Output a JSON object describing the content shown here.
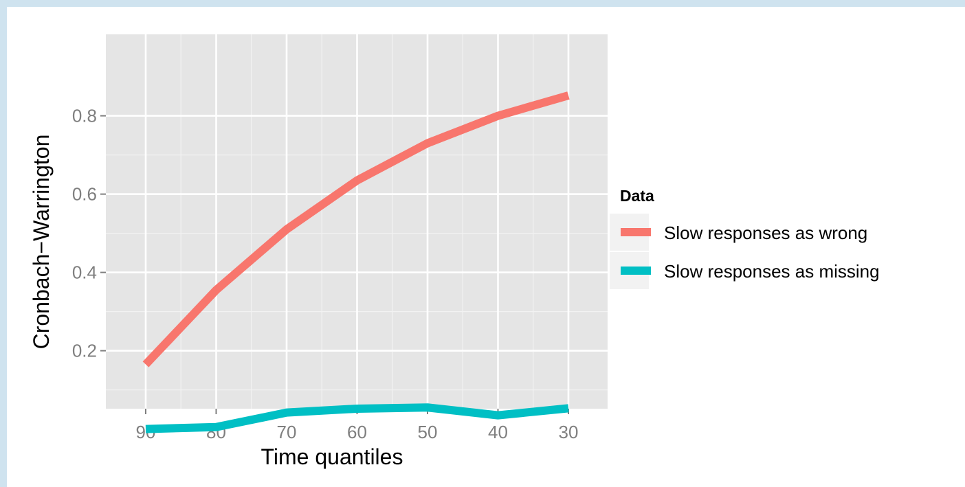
{
  "chart_data": {
    "type": "line",
    "title": "",
    "xlabel": "Time quantiles",
    "ylabel": "Cronbach−Warrington",
    "x": [
      "90",
      "80",
      "70",
      "60",
      "50",
      "40",
      "30"
    ],
    "yticks": [
      "0.2",
      "0.4",
      "0.6",
      "0.8"
    ],
    "ylim": [
      0,
      0.9
    ],
    "grid": true,
    "legend": {
      "title": "Data",
      "placement": "right"
    },
    "series": [
      {
        "name": "Slow responses as wrong",
        "color": "#f8766d",
        "values": [
          0.165,
          0.355,
          0.51,
          0.635,
          0.73,
          0.8,
          0.852
        ]
      },
      {
        "name": "Slow responses as missing",
        "color": "#00bfc4",
        "values": [
          0.0,
          0.005,
          0.042,
          0.052,
          0.055,
          0.035,
          0.053
        ]
      }
    ]
  }
}
